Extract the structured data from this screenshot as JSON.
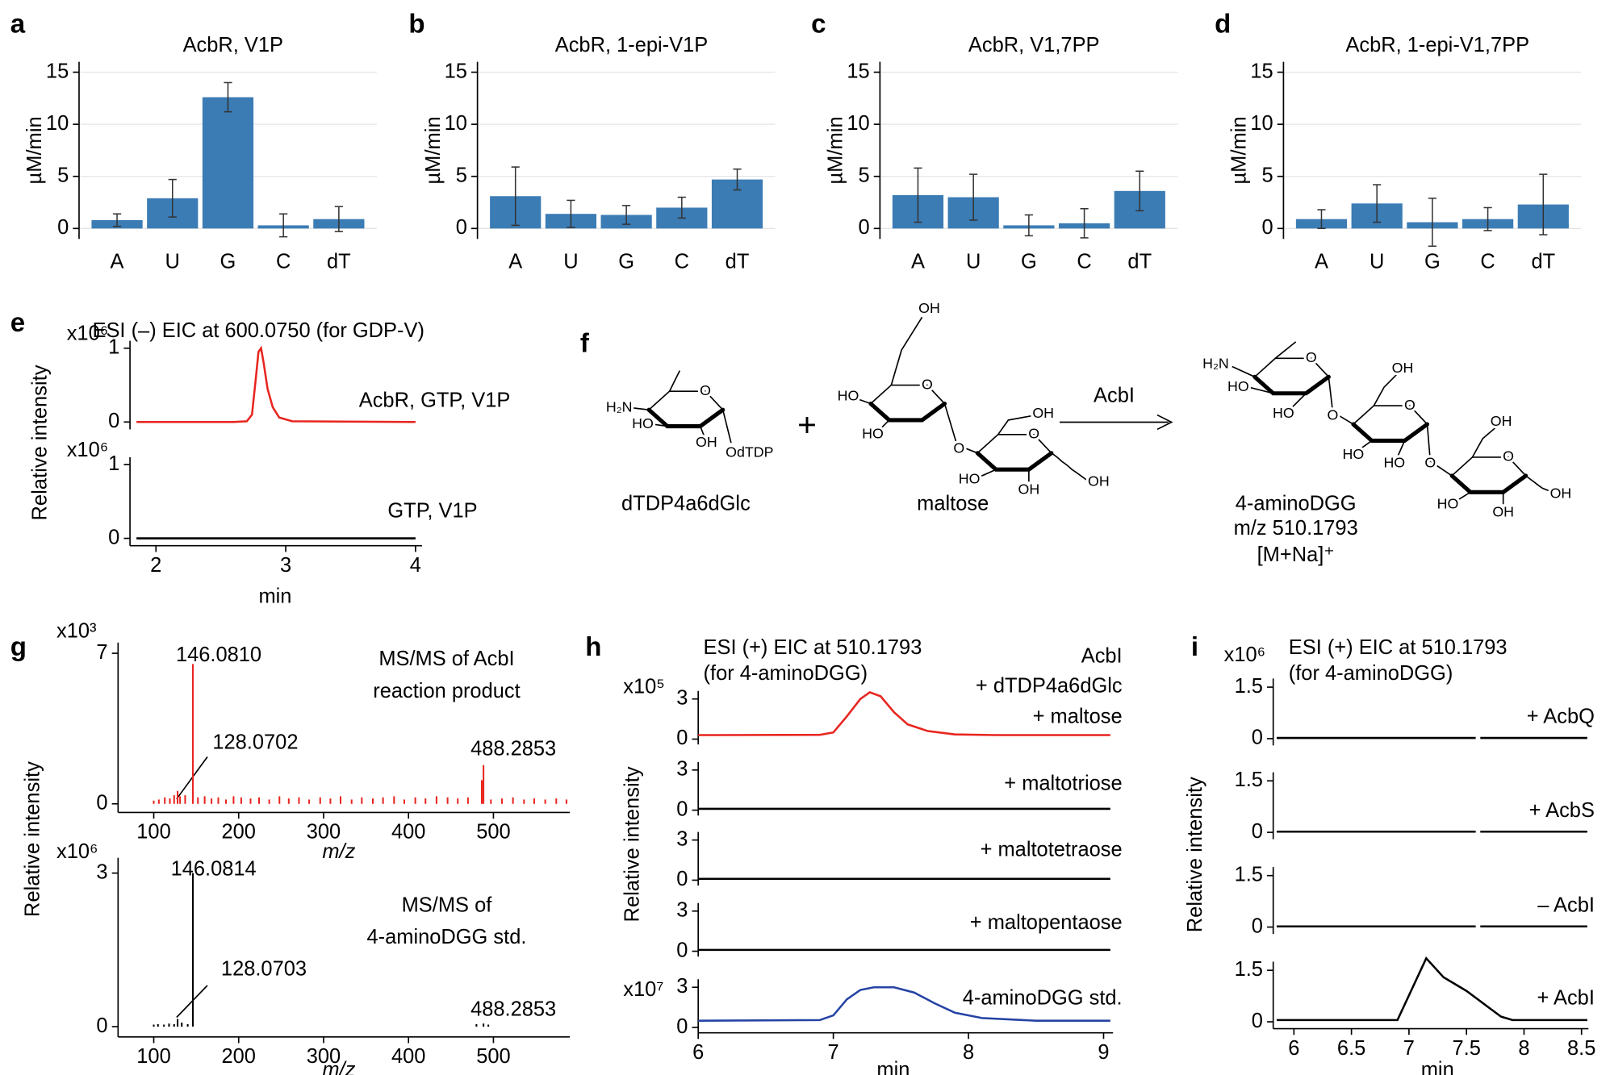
{
  "chart_data": [
    {
      "type": "bar",
      "panel": "a",
      "title": "AcbR, V1P",
      "ylabel": "µM/min",
      "categories": [
        "A",
        "U",
        "G",
        "C",
        "dT"
      ],
      "values": [
        0.8,
        2.9,
        12.6,
        0.3,
        0.9
      ],
      "errors": [
        0.6,
        1.8,
        1.4,
        1.1,
        1.2
      ],
      "color": "#3b7cb5",
      "ylim": [
        -1,
        16
      ],
      "yticks": [
        0,
        5,
        10,
        15
      ],
      "grid": true
    },
    {
      "type": "bar",
      "panel": "b",
      "title": "AcbR, 1-epi-V1P",
      "ylabel": "µM/min",
      "categories": [
        "A",
        "U",
        "G",
        "C",
        "dT"
      ],
      "values": [
        3.1,
        1.4,
        1.3,
        2.0,
        4.7
      ],
      "errors": [
        2.8,
        1.3,
        0.9,
        1.0,
        1.0
      ],
      "color": "#3b7cb5",
      "ylim": [
        -1,
        16
      ],
      "yticks": [
        0,
        5,
        10,
        15
      ],
      "grid": true
    },
    {
      "type": "bar",
      "panel": "c",
      "title": "AcbR, V1,7PP",
      "ylabel": "µM/min",
      "categories": [
        "A",
        "U",
        "G",
        "C",
        "dT"
      ],
      "values": [
        3.2,
        3.0,
        0.3,
        0.5,
        3.6
      ],
      "errors": [
        2.6,
        2.2,
        1.0,
        1.4,
        1.9
      ],
      "color": "#3b7cb5",
      "ylim": [
        -1,
        16
      ],
      "yticks": [
        0,
        5,
        10,
        15
      ],
      "grid": true
    },
    {
      "type": "bar",
      "panel": "d",
      "title": "AcbR, 1-epi-V1,7PP",
      "ylabel": "µM/min",
      "categories": [
        "A",
        "U",
        "G",
        "C",
        "dT"
      ],
      "values": [
        0.9,
        2.4,
        0.6,
        0.9,
        2.3
      ],
      "errors": [
        0.9,
        1.8,
        2.3,
        1.1,
        2.9
      ],
      "color": "#3b7cb5",
      "ylim": [
        -1,
        16
      ],
      "yticks": [
        0,
        5,
        10,
        15
      ],
      "grid": true
    },
    {
      "type": "line",
      "panel": "e",
      "title": [
        "ESI (–) EIC at 600.0750 (for GDP-V)"
      ],
      "xlabel": "min",
      "ylabel": "Relative intensity",
      "xlim": [
        1.8,
        4.05
      ],
      "xticks": [
        2,
        3,
        4
      ],
      "subplots": [
        {
          "scale_label": "x10⁶",
          "ylim": [
            -0.1,
            1.1
          ],
          "yticks": [
            0,
            1
          ],
          "labels": [
            "AcbR, GTP, V1P"
          ],
          "series": [
            {
              "color": "#e8251f",
              "x": [
                1.85,
                2.6,
                2.7,
                2.74,
                2.77,
                2.79,
                2.81,
                2.83,
                2.86,
                2.9,
                2.95,
                3.05,
                4.0
              ],
              "values": [
                0,
                0,
                0.01,
                0.1,
                0.6,
                0.95,
                1.0,
                0.8,
                0.45,
                0.2,
                0.06,
                0.01,
                0
              ]
            }
          ]
        },
        {
          "scale_label": "x10⁶",
          "ylim": [
            -0.1,
            1.1
          ],
          "yticks": [
            0,
            1
          ],
          "labels": [
            "GTP, V1P"
          ],
          "series": [
            {
              "color": "#000000",
              "x": [
                1.85,
                4.0
              ],
              "values": [
                0,
                0
              ]
            }
          ]
        }
      ]
    },
    {
      "type": "stem",
      "panel": "g",
      "xlabel": "m/z",
      "ylabel": "Relative intensity",
      "xlim": [
        58,
        590
      ],
      "xticks": [
        100,
        200,
        300,
        400,
        500
      ],
      "subplots": [
        {
          "scale_label": "x10³",
          "ylim": [
            -0.4,
            7.5
          ],
          "yticks": [
            0,
            7
          ],
          "labels": [
            "MS/MS of AcbI",
            "reaction product"
          ],
          "annotations": [
            "146.0810",
            "128.0702",
            "488.2853"
          ],
          "series": [
            {
              "color": "#e8251f",
              "x": [
                146.081,
                128.0702,
                488.2853,
                486.3,
                124,
                131,
                100,
                106,
                113,
                119,
                137,
                152,
                160,
                168,
                176,
                185,
                194,
                203,
                214,
                224,
                236,
                248,
                259,
                271,
                283,
                296,
                308,
                320,
                333,
                345,
                358,
                370,
                383,
                395,
                408,
                420,
                433,
                446,
                458,
                470,
                497,
                510,
                523,
                536,
                548,
                561,
                574,
                586
              ],
              "values": [
                6.5,
                0.6,
                1.8,
                1.1,
                0.4,
                0.35,
                0.15,
                0.2,
                0.3,
                0.25,
                0.4,
                0.3,
                0.35,
                0.25,
                0.3,
                0.2,
                0.35,
                0.3,
                0.25,
                0.3,
                0.2,
                0.35,
                0.25,
                0.3,
                0.2,
                0.3,
                0.25,
                0.35,
                0.2,
                0.3,
                0.25,
                0.3,
                0.35,
                0.2,
                0.3,
                0.25,
                0.35,
                0.3,
                0.25,
                0.3,
                0.2,
                0.25,
                0.3,
                0.2,
                0.25,
                0.2,
                0.25,
                0.2
              ]
            }
          ]
        },
        {
          "scale_label": "x10⁶",
          "ylim": [
            -0.2,
            3.3
          ],
          "yticks": [
            0,
            3
          ],
          "labels": [
            "MS/MS of",
            "4-aminoDGG std."
          ],
          "annotations": [
            "146.0814",
            "128.0703",
            "488.2853"
          ],
          "series": [
            {
              "color": "#000000",
              "x": [
                146.0814,
                128.0703,
                488.2853,
                100,
                105,
                112,
                118,
                124,
                133,
                140,
                480,
                494
              ],
              "values": [
                3.0,
                0.15,
                0.06,
                0.04,
                0.05,
                0.04,
                0.06,
                0.05,
                0.08,
                0.05,
                0.05,
                0.04
              ]
            }
          ]
        }
      ]
    },
    {
      "type": "line",
      "panel": "h",
      "title": [
        "ESI (+) EIC at 510.1793",
        "(for 4-aminoDGG)"
      ],
      "xlabel": "min",
      "ylabel": "Relative intensity",
      "xlim": [
        6,
        9.07
      ],
      "xticks": [
        6,
        7,
        8,
        9
      ],
      "subplots": [
        {
          "scale_label": "x10⁵",
          "ylim": [
            -0.4,
            3.6
          ],
          "yticks": [
            0,
            3
          ],
          "labels": [
            "AcbI",
            "+ dTDP4a6dGlc",
            "+ maltose"
          ],
          "series": [
            {
              "color": "#e8251f",
              "x": [
                6,
                6.9,
                7.0,
                7.1,
                7.2,
                7.27,
                7.35,
                7.45,
                7.55,
                7.7,
                7.9,
                8.2,
                9.05
              ],
              "values": [
                0.3,
                0.32,
                0.5,
                1.7,
                3.0,
                3.5,
                3.2,
                2.0,
                1.1,
                0.6,
                0.35,
                0.3,
                0.3
              ]
            }
          ]
        },
        {
          "ylim": [
            -0.4,
            3.6
          ],
          "yticks": [
            0,
            3
          ],
          "labels": [
            "+ maltotriose"
          ],
          "series": [
            {
              "color": "#000000",
              "x": [
                6,
                9.05
              ],
              "values": [
                0.1,
                0.1
              ]
            }
          ]
        },
        {
          "ylim": [
            -0.4,
            3.6
          ],
          "yticks": [
            0,
            3
          ],
          "labels": [
            "+ maltotetraose"
          ],
          "series": [
            {
              "color": "#000000",
              "x": [
                6,
                9.05
              ],
              "values": [
                0.1,
                0.1
              ]
            }
          ]
        },
        {
          "ylim": [
            -0.4,
            3.6
          ],
          "yticks": [
            0,
            3
          ],
          "labels": [
            "+ maltopentaose"
          ],
          "series": [
            {
              "color": "#000000",
              "x": [
                6,
                9.05
              ],
              "values": [
                0.1,
                0.1
              ]
            }
          ]
        },
        {
          "scale_label": "x10⁷",
          "ylim": [
            -0.4,
            3.6
          ],
          "yticks": [
            0,
            3
          ],
          "labels": [
            "4-aminoDGG std."
          ],
          "series": [
            {
              "color": "#2543a4",
              "x": [
                6,
                6.9,
                7.0,
                7.1,
                7.2,
                7.3,
                7.45,
                7.6,
                7.75,
                7.9,
                8.1,
                8.5,
                9.05
              ],
              "values": [
                0.5,
                0.55,
                0.9,
                2.1,
                2.8,
                3.0,
                3.0,
                2.6,
                1.8,
                1.1,
                0.7,
                0.5,
                0.5
              ]
            }
          ]
        }
      ]
    },
    {
      "type": "line",
      "panel": "i",
      "title": [
        "ESI (+) EIC at 510.1793",
        "(for 4-aminoDGG)"
      ],
      "xlabel": "min",
      "ylabel": "Relative intensity",
      "xlim": [
        5.82,
        8.56
      ],
      "xticks": [
        6,
        6.5,
        7,
        7.5,
        8,
        8.5
      ],
      "subplots": [
        {
          "scale_label": "x10⁶",
          "ylim": [
            -0.2,
            1.75
          ],
          "yticks": [
            0,
            1.5
          ],
          "labels": [
            "+ AcbQ"
          ],
          "series": [
            {
              "color": "#000000",
              "x": [
                5.85,
                7.58,
                7.6,
                7.62,
                8.55
              ],
              "values": [
                0.02,
                0.02,
                null,
                0.02,
                0.02
              ]
            }
          ]
        },
        {
          "ylim": [
            -0.2,
            1.75
          ],
          "yticks": [
            0,
            1.5
          ],
          "labels": [
            "+ AcbS"
          ],
          "series": [
            {
              "color": "#000000",
              "x": [
                5.85,
                7.58,
                7.6,
                7.62,
                8.55
              ],
              "values": [
                0.02,
                0.02,
                null,
                0.02,
                0.02
              ]
            }
          ]
        },
        {
          "ylim": [
            -0.2,
            1.75
          ],
          "yticks": [
            0,
            1.5
          ],
          "labels": [
            "– AcbI"
          ],
          "series": [
            {
              "color": "#000000",
              "x": [
                5.85,
                7.58,
                7.6,
                7.62,
                8.55
              ],
              "values": [
                0.02,
                0.02,
                null,
                0.02,
                0.02
              ]
            }
          ]
        },
        {
          "ylim": [
            -0.2,
            1.75
          ],
          "yticks": [
            0,
            1.5
          ],
          "labels": [
            "+ AcbI"
          ],
          "series": [
            {
              "color": "#000000",
              "x": [
                5.85,
                6.9,
                7.15,
                7.3,
                7.5,
                7.7,
                7.8,
                7.9,
                8.55
              ],
              "values": [
                0.05,
                0.05,
                1.85,
                1.3,
                0.9,
                0.4,
                0.15,
                0.05,
                0.05
              ]
            }
          ]
        }
      ]
    }
  ],
  "scheme": {
    "panel": "f",
    "plus": "+",
    "enzyme": "AcbI",
    "molecules": [
      {
        "name": "dTDP4a6dGlc",
        "atoms": [
          "H₂N",
          "HO",
          "OH",
          "OdTDP",
          "O"
        ]
      },
      {
        "name": "maltose",
        "atoms": [
          "OH",
          "HO",
          "HO",
          "O",
          "O",
          "OH",
          "HO",
          "OH",
          "OH",
          "O"
        ]
      },
      {
        "name": "4-aminoDGG",
        "mz": "m/z 510.1793",
        "adduct": "[M+Na]⁺",
        "atoms": [
          "H₂N",
          "HO",
          "HO",
          "O",
          "O",
          "OH",
          "HO",
          "HO",
          "O",
          "O",
          "OH",
          "HO",
          "OH",
          "OH",
          "O"
        ]
      }
    ]
  }
}
